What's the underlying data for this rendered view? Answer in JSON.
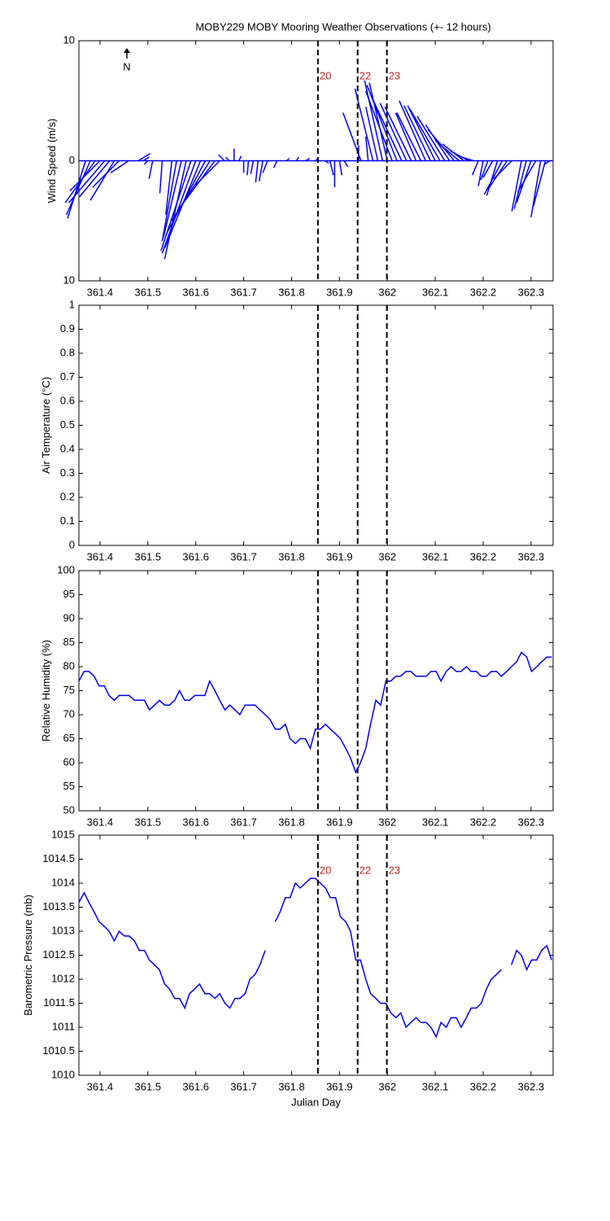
{
  "events": {
    "x": [
      361.855,
      361.938,
      361.999
    ],
    "labels": [
      "20",
      "22",
      "23"
    ],
    "color": "#cc2222"
  },
  "chart_data": [
    {
      "type": "stick",
      "title": "MOBY229 MOBY Mooring Weather Observations (+- 12 hours)",
      "ylabel": "Wind Speed (m/s)",
      "annotation": "N",
      "event_labels": true,
      "xlim": [
        361.356,
        362.346
      ],
      "xticks": [
        361.4,
        361.5,
        361.6,
        361.7,
        361.8,
        361.9,
        362,
        362.1,
        362.2,
        362.3
      ],
      "ylim": [
        -10,
        10
      ],
      "yticks": [
        {
          "value": -10,
          "label": "10"
        },
        0,
        10
      ],
      "series": [
        {
          "color": "#0000ee",
          "x": [
            361.37,
            361.38,
            361.39,
            361.4,
            361.41,
            361.42,
            361.43,
            361.44,
            361.46,
            361.48,
            361.49,
            361.5,
            361.51,
            361.53,
            361.55,
            361.56,
            361.57,
            361.58,
            361.59,
            361.6,
            361.61,
            361.62,
            361.63,
            361.64,
            361.65,
            361.66,
            361.67,
            361.68,
            361.69,
            361.7,
            361.71,
            361.72,
            361.73,
            361.74,
            361.75,
            361.77,
            361.79,
            361.81,
            361.83,
            361.85,
            361.87,
            361.88,
            361.89,
            361.9,
            361.91,
            361.94,
            361.945,
            361.96,
            361.97,
            361.98,
            361.99,
            362.0,
            362.01,
            362.02,
            362.03,
            362.04,
            362.05,
            362.06,
            362.07,
            362.08,
            362.09,
            362.1,
            362.11,
            362.12,
            362.13,
            362.14,
            362.15,
            362.16,
            362.17,
            362.18,
            362.19,
            362.2,
            362.21,
            362.22,
            362.23,
            362.24,
            362.25,
            362.26,
            362.28,
            362.29,
            362.3,
            362.31,
            362.32,
            362.33,
            362.34
          ],
          "u": [
            -1.5,
            -2,
            -2.5,
            -2.5,
            -3,
            -2.5,
            -2,
            -2.2,
            -1.5,
            1,
            0.5,
            -0.3,
            -0.3,
            -0.2,
            -0.5,
            -1.2,
            -1.5,
            -1.8,
            -2.5,
            -2.8,
            -3,
            -3.2,
            -3.2,
            -3,
            -2,
            -0.5,
            -0.3,
            0,
            0.2,
            0,
            -0.1,
            -0.2,
            -0.2,
            -0.3,
            -0.4,
            -0.3,
            0.2,
            0.2,
            0.3,
            0.2,
            0.3,
            0.3,
            0,
            0.2,
            0.3,
            0,
            -1.5,
            -0.2,
            -1.5,
            -1,
            -1.5,
            -1.5,
            -2.2,
            -2.5,
            -2.5,
            -2.2,
            -2.2,
            -1.7,
            -2,
            -2.2,
            -2.2,
            -2.3,
            -2.5,
            -2.3,
            -2,
            -2.2,
            -2,
            -1.8,
            -1.5,
            -1,
            -0.5,
            -0.4,
            -0.6,
            -0.8,
            -0.9,
            -1.5,
            -1.6,
            -1.5,
            -0.8,
            -1,
            -1.2,
            -1.5,
            -0.8,
            -1,
            -0.5
          ],
          "values": [
            -4.8,
            -4.5,
            -3.5,
            -2.5,
            -3.5,
            -3,
            -3.3,
            -2.2,
            -1,
            0.6,
            0.3,
            -0.3,
            -1.5,
            -2.7,
            -4.5,
            -6.7,
            -6.4,
            -8.2,
            -7.5,
            -7.7,
            -7.3,
            -6,
            -5,
            -4,
            -2,
            0.5,
            0.3,
            1,
            0.4,
            -1,
            -1.2,
            -1.1,
            -1.8,
            -1.7,
            -1,
            -0.6,
            0.2,
            0.3,
            0.2,
            0.2,
            -0.2,
            -1.2,
            -2.2,
            -1.2,
            -0.5,
            1.3,
            4,
            2,
            6,
            4.5,
            6.7,
            6.5,
            5.8,
            6.3,
            5.3,
            4.8,
            4.5,
            4,
            4,
            5,
            4.6,
            4.6,
            4.3,
            3.7,
            3,
            2.6,
            1.7,
            1.4,
            0.8,
            0.3,
            -1.2,
            -2.1,
            -1.6,
            -1.4,
            -2.9,
            -2.8,
            -2.4,
            -1.5,
            -4.2,
            -4,
            -3.5,
            -2.6,
            -4.7,
            -3.8,
            -0.3
          ]
        }
      ]
    },
    {
      "type": "line",
      "ylabel": "Air Temperature (°C)",
      "event_labels": false,
      "xlim": [
        361.356,
        362.346
      ],
      "xticks": [
        361.4,
        361.5,
        361.6,
        361.7,
        361.8,
        361.9,
        362,
        362.1,
        362.2,
        362.3
      ],
      "ylim": [
        0,
        1
      ],
      "yticks": [
        0,
        0.1,
        0.2,
        0.3,
        0.4,
        0.5,
        0.6,
        0.7,
        0.8,
        0.9,
        1
      ],
      "series": []
    },
    {
      "type": "line",
      "ylabel": "Relative Humidity (%)",
      "event_labels": false,
      "xlim": [
        361.356,
        362.346
      ],
      "xticks": [
        361.4,
        361.5,
        361.6,
        361.7,
        361.8,
        361.9,
        362,
        362.1,
        362.2,
        362.3
      ],
      "ylim": [
        50,
        100
      ],
      "yticks": [
        50,
        55,
        60,
        65,
        70,
        75,
        80,
        85,
        90,
        95,
        100
      ],
      "series": [
        {
          "color": "#0000ee",
          "x": [
            361.356,
            361.367,
            361.377,
            361.388,
            361.398,
            361.409,
            361.419,
            361.43,
            361.44,
            361.451,
            361.461,
            361.472,
            361.482,
            361.493,
            361.503,
            361.514,
            361.524,
            361.535,
            361.545,
            361.556,
            361.566,
            361.577,
            361.587,
            361.598,
            361.608,
            361.619,
            361.629,
            361.64,
            361.65,
            361.661,
            361.671,
            361.682,
            361.692,
            361.703,
            361.713,
            361.724,
            361.734,
            361.745,
            361.755,
            361.766,
            361.776,
            361.787,
            361.797,
            361.808,
            361.818,
            361.829,
            361.839,
            361.85,
            361.86,
            361.871,
            361.881,
            361.892,
            361.902,
            361.913,
            361.923,
            361.934,
            361.944,
            361.955,
            361.965,
            361.976,
            361.986,
            361.997,
            362.007,
            362.018,
            362.028,
            362.039,
            362.049,
            362.06,
            362.07,
            362.081,
            362.091,
            362.102,
            362.112,
            362.123,
            362.133,
            362.144,
            362.154,
            362.165,
            362.175,
            362.186,
            362.196,
            362.207,
            362.217,
            362.228,
            362.238,
            362.249,
            362.259,
            362.27,
            362.28,
            362.291,
            362.301,
            362.312,
            362.322,
            362.333,
            362.343
          ],
          "values": [
            77,
            79,
            79,
            78,
            76,
            76,
            74,
            73,
            74,
            74,
            74,
            73,
            73,
            73,
            71,
            72,
            73,
            72,
            72,
            73,
            75,
            73,
            73,
            74,
            74,
            74,
            77,
            75,
            73,
            71,
            72,
            71,
            70,
            72,
            72,
            72,
            71,
            70,
            69,
            67,
            67,
            68,
            65,
            64,
            65,
            65,
            63,
            67,
            67,
            68,
            67,
            66,
            65,
            63,
            61,
            58,
            60,
            63,
            68,
            73,
            72,
            77,
            77,
            78,
            78,
            79,
            79,
            78,
            78,
            78,
            79,
            79,
            77,
            79,
            80,
            79,
            79,
            80,
            79,
            79,
            78,
            78,
            79,
            79,
            78,
            79,
            80,
            81,
            83,
            82,
            79,
            80,
            81,
            82,
            82
          ]
        }
      ]
    },
    {
      "type": "line",
      "ylabel": "Barometric Pressure (mb)",
      "xlabel": "Julian Day",
      "event_labels": true,
      "xlim": [
        361.356,
        362.346
      ],
      "xticks": [
        361.4,
        361.5,
        361.6,
        361.7,
        361.8,
        361.9,
        362,
        362.1,
        362.2,
        362.3
      ],
      "ylim": [
        1010,
        1015
      ],
      "yticks": [
        1010,
        1010.5,
        1011,
        1011.5,
        1012,
        1012.5,
        1013,
        1013.5,
        1014,
        1014.5,
        1015
      ],
      "series": [
        {
          "color": "#0000ee",
          "x": [
            361.356,
            361.367,
            361.377,
            361.388,
            361.398,
            361.409,
            361.419,
            361.43,
            361.44,
            361.451,
            361.461,
            361.472,
            361.482,
            361.493,
            361.503,
            361.514,
            361.524,
            361.535,
            361.545,
            361.556,
            361.566,
            361.577,
            361.587,
            361.598,
            361.608,
            361.619,
            361.629,
            361.64,
            361.65,
            361.661,
            361.671,
            361.682,
            361.692,
            361.703,
            361.713,
            361.724,
            361.734,
            361.745,
            361.755,
            361.766,
            361.776,
            361.787,
            361.797,
            361.808,
            361.818,
            361.829,
            361.839,
            361.85,
            361.86,
            361.871,
            361.881,
            361.892,
            361.902,
            361.913,
            361.923,
            361.934,
            361.944,
            361.955,
            361.965,
            361.976,
            361.986,
            361.997,
            362.007,
            362.018,
            362.028,
            362.039,
            362.049,
            362.06,
            362.07,
            362.081,
            362.091,
            362.102,
            362.112,
            362.123,
            362.133,
            362.144,
            362.154,
            362.165,
            362.175,
            362.186,
            362.196,
            362.207,
            362.217,
            362.228,
            362.238,
            362.249,
            362.259,
            362.27,
            362.28,
            362.291,
            362.301,
            362.312,
            362.322,
            362.333,
            362.343
          ],
          "values": [
            1013.6,
            1013.8,
            1013.6,
            1013.4,
            1013.2,
            1013.1,
            1013.0,
            1012.8,
            1013.0,
            1012.9,
            1012.9,
            1012.8,
            1012.6,
            1012.6,
            1012.4,
            1012.3,
            1012.2,
            1011.9,
            1011.8,
            1011.6,
            1011.6,
            1011.4,
            1011.7,
            1011.8,
            1011.9,
            1011.7,
            1011.7,
            1011.6,
            1011.7,
            1011.5,
            1011.4,
            1011.6,
            1011.6,
            1011.7,
            1012.0,
            1012.1,
            1012.3,
            1012.6,
            null,
            1013.2,
            1013.4,
            1013.7,
            1013.7,
            1014.0,
            1013.9,
            1014.0,
            1014.1,
            1014.1,
            1014.0,
            1013.9,
            1013.7,
            1013.7,
            1013.3,
            1013.2,
            1013.0,
            1012.4,
            1012.4,
            1012.0,
            1011.7,
            1011.6,
            1011.5,
            1011.5,
            1011.3,
            1011.2,
            1011.3,
            1011.0,
            1011.1,
            1011.2,
            1011.1,
            1011.1,
            1011.0,
            1010.8,
            1011.1,
            1011.0,
            1011.2,
            1011.2,
            1011.0,
            1011.2,
            1011.4,
            1011.4,
            1011.5,
            1011.8,
            1012.0,
            1012.1,
            1012.2,
            null,
            1012.3,
            1012.6,
            1012.5,
            1012.2,
            1012.4,
            1012.4,
            1012.6,
            1012.7,
            1012.4
          ]
        }
      ]
    }
  ]
}
